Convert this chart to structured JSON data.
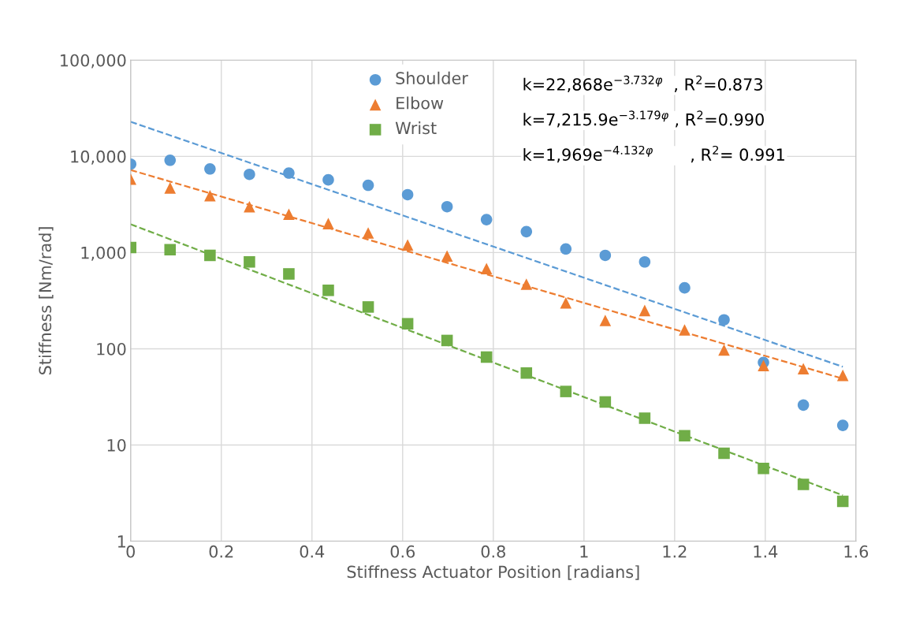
{
  "chart_data": {
    "type": "scatter",
    "xlabel": "Stiffness Actuator Position [radians]",
    "ylabel": "Stiffness [Nm/rad]",
    "log": "y",
    "grid": true,
    "legend": "top",
    "xlim": [
      0,
      1.6
    ],
    "xticks": [
      {
        "value": 0,
        "label": "0"
      },
      0.2,
      0.4,
      0.6,
      0.8,
      {
        "value": 1,
        "label": "1"
      },
      1.2,
      1.4,
      1.6
    ],
    "ylim": [
      1,
      100000
    ],
    "yticks": [
      {
        "value": 1,
        "label": "1"
      },
      {
        "value": 10,
        "label": "10"
      },
      {
        "value": 100,
        "label": "100"
      },
      {
        "value": 1000,
        "label": "1,000"
      },
      {
        "value": 10000,
        "label": "10,000"
      },
      {
        "value": 100000,
        "label": "100,000"
      }
    ],
    "x": [
      0,
      0.087,
      0.175,
      0.262,
      0.349,
      0.436,
      0.524,
      0.611,
      0.698,
      0.785,
      0.873,
      0.96,
      1.047,
      1.134,
      1.222,
      1.309,
      1.396,
      1.484,
      1.571
    ],
    "series": [
      {
        "name": "Shoulder",
        "color": "#5b9bd5",
        "marker": "circle",
        "values": [
          8300,
          9100,
          7400,
          6500,
          6700,
          5700,
          5000,
          4000,
          3000,
          2200,
          1650,
          1090,
          935,
          800,
          430,
          200,
          72,
          26,
          16
        ]
      },
      {
        "name": "Elbow",
        "color": "#ed7d31",
        "marker": "triangle",
        "values": [
          5800,
          4700,
          3900,
          3000,
          2500,
          2000,
          1600,
          1200,
          920,
          680,
          470,
          300,
          197,
          250,
          157,
          97,
          67,
          62,
          53
        ]
      },
      {
        "name": "Wrist",
        "color": "#70ad47",
        "marker": "square",
        "values": [
          1130,
          1070,
          935,
          800,
          600,
          405,
          272,
          182,
          122,
          82,
          56,
          36,
          28,
          19,
          12.5,
          8.2,
          5.7,
          3.9,
          2.6
        ]
      },
      {
        "type": "line",
        "color": "#5b9bd5",
        "line_style": "dashed",
        "marker": "none",
        "x": [
          0,
          0.4,
          0.8,
          1.2,
          1.571
        ],
        "values": [
          22868,
          5140,
          1155,
          260,
          65
        ]
      },
      {
        "type": "line",
        "color": "#ed7d31",
        "line_style": "dashed",
        "marker": "none",
        "x": [
          0,
          0.4,
          0.8,
          1.2,
          1.571
        ],
        "values": [
          7216,
          2023,
          567,
          159,
          49
        ]
      },
      {
        "type": "line",
        "color": "#70ad47",
        "line_style": "dashed",
        "marker": "none",
        "x": [
          0,
          0.4,
          0.8,
          1.2,
          1.571
        ],
        "values": [
          1969,
          377,
          72,
          13.8,
          3
        ]
      }
    ],
    "annotations": [
      "k=22,868e$^{−3.732φ}$  , R$^{2}$=0.873",
      "k=7,215.9e$^{−3.179φ}$ , R$^{2}$=0.990",
      "k=1,969e$^{−4.132φ}$       , R$^{2}$= 0.991"
    ]
  }
}
